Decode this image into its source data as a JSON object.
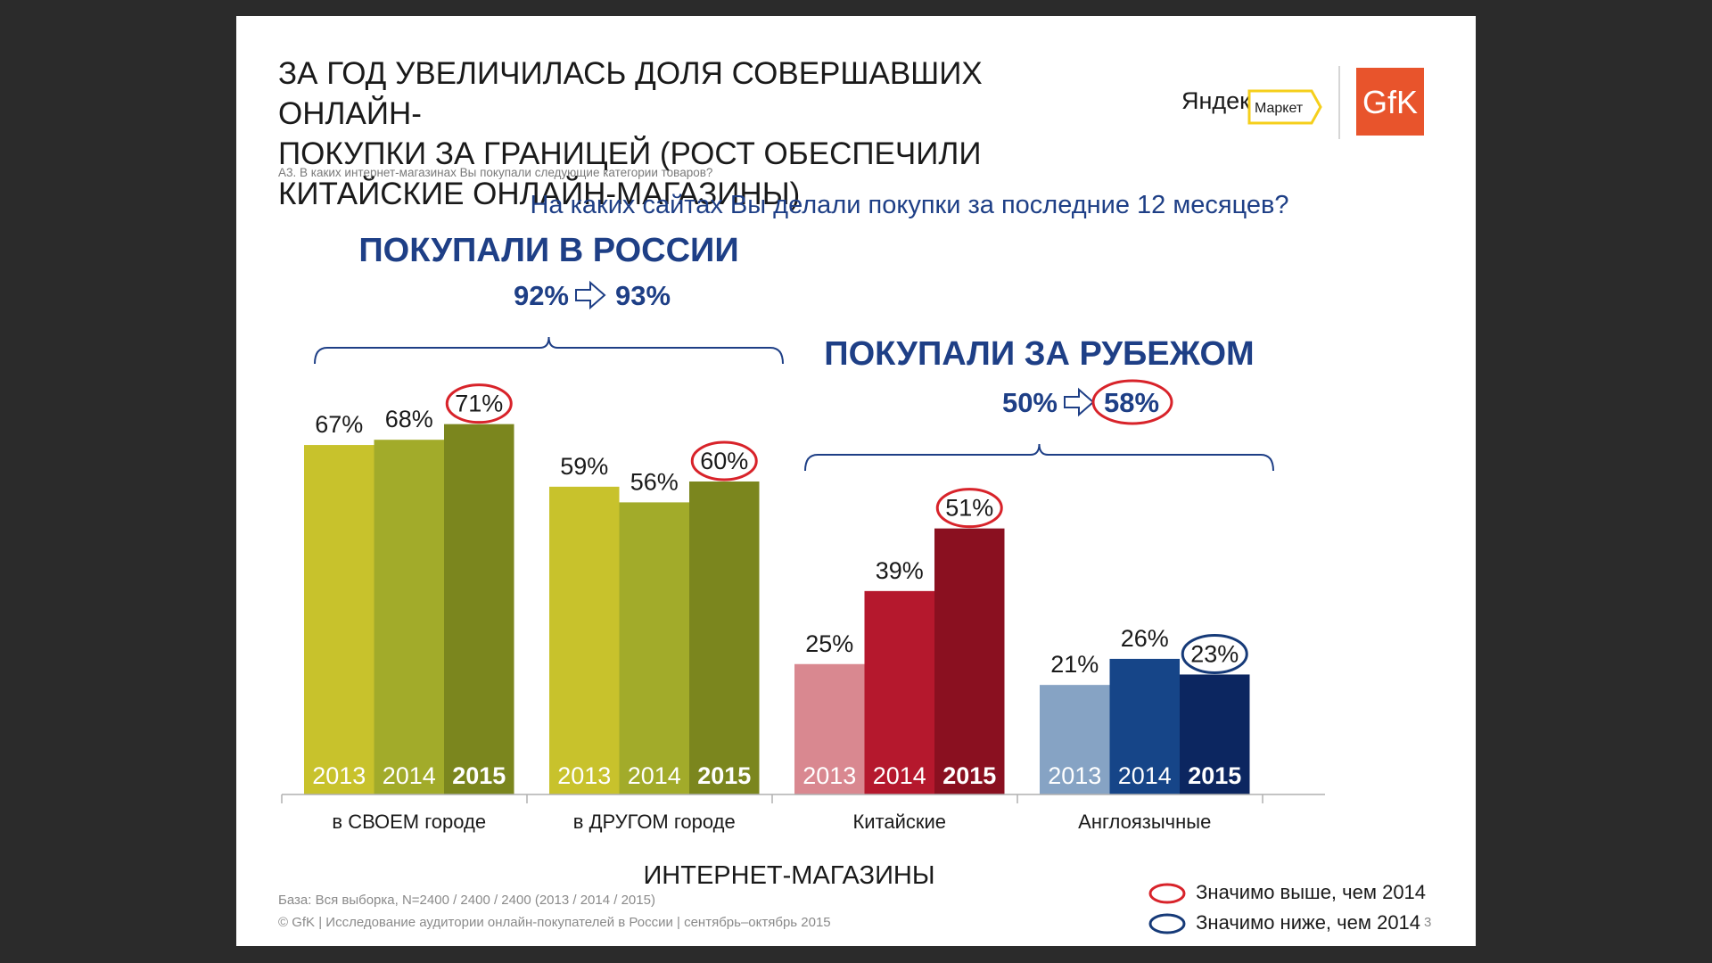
{
  "slide": {
    "title": "ЗА ГОД УВЕЛИЧИЛАСЬ ДОЛЯ СОВЕРШАВШИХ ОНЛАЙН-\nПОКУПКИ ЗА ГРАНИЦЕЙ (РОСТ ОБЕСПЕЧИЛИ\nКИТАЙСКИЕ ОНЛАЙН-МАГАЗИНЫ)",
    "question_small": "А3. В каких интернет-магазинах Вы покупали следующие категории товаров?",
    "main_question": "На каких сайтах Вы делали покупки за последние 12 месяцев?",
    "logos": {
      "yandex": "Яндекс",
      "market": "Маркет",
      "gfk": "GfK"
    },
    "footer_base": "База: Вся выборка, N=2400 / 2400 / 2400 (2013 / 2014 / 2015)",
    "footer_copy": "© GfK | Исследование аудитории онлайн-покупателей в России | сентябрь–октябрь 2015",
    "page_number": "3",
    "legend": {
      "high": "Значимо выше, чем 2014",
      "low": "Значимо ниже, чем 2014",
      "high_color": "#d8232a",
      "low_color": "#163a78"
    }
  },
  "chart_data": {
    "type": "bar",
    "xlabel": "ИНТЕРНЕТ-МАГАЗИНЫ",
    "ylabel": "",
    "ylim": [
      0,
      100
    ],
    "years": [
      "2013",
      "2014",
      "2015"
    ],
    "categories": [
      "в СВОЕМ городе",
      "в ДРУГОМ городе",
      "Китайские",
      "Англоязычные"
    ],
    "groups": [
      {
        "category": "в СВОЕМ городе",
        "values": [
          67,
          68,
          71
        ],
        "labels": [
          "67%",
          "68%",
          "71%"
        ],
        "colors": [
          "#c8c22c",
          "#a2ab2a",
          "#7b861e"
        ],
        "circled": "high"
      },
      {
        "category": "в ДРУГОМ городе",
        "values": [
          59,
          56,
          60
        ],
        "labels": [
          "59%",
          "56%",
          "60%"
        ],
        "colors": [
          "#c8c22c",
          "#a2ab2a",
          "#7b861e"
        ],
        "circled": "high"
      },
      {
        "category": "Китайские",
        "values": [
          25,
          39,
          51
        ],
        "labels": [
          "25%",
          "39%",
          "51%"
        ],
        "colors": [
          "#d98890",
          "#b5182d",
          "#8a1020"
        ],
        "circled": "high"
      },
      {
        "category": "Англоязычные",
        "values": [
          21,
          26,
          23
        ],
        "labels": [
          "21%",
          "26%",
          "23%"
        ],
        "colors": [
          "#86a3c4",
          "#164588",
          "#0c2660"
        ],
        "circled": "low"
      }
    ],
    "summaries": [
      {
        "title": "ПОКУПАЛИ В РОССИИ",
        "from": "92%",
        "to": "93%",
        "to_circled": false,
        "covers": [
          0,
          1
        ]
      },
      {
        "title": "ПОКУПАЛИ ЗА РУБЕЖОМ",
        "from": "50%",
        "to": "58%",
        "to_circled": true,
        "covers": [
          2,
          3
        ]
      }
    ],
    "summary_text_color": "#1e3f86"
  }
}
